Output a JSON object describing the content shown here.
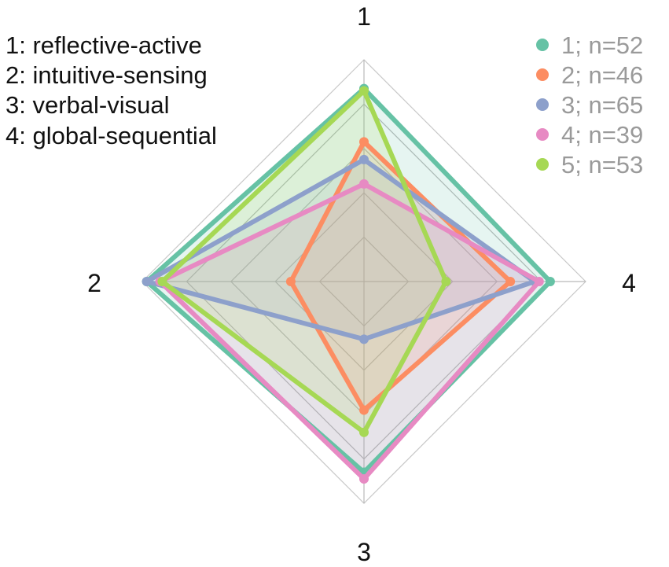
{
  "chart_data": {
    "type": "radar",
    "title": "",
    "axes": [
      "1",
      "2",
      "3",
      "4"
    ],
    "axis_descriptions": [
      "1: reflective-active",
      "2: intuitive-sensing",
      "3: verbal-visual",
      "4: global-sequential"
    ],
    "range": [
      0,
      1
    ],
    "grid_levels": [
      0.2,
      0.4,
      0.6,
      0.8,
      1.0
    ],
    "grid": true,
    "legend_position": "top-right",
    "series": [
      {
        "name": "1; n=52",
        "color": "#66c2a5",
        "values": [
          0.87,
          0.98,
          0.86,
          0.84
        ]
      },
      {
        "name": "2; n=46",
        "color": "#fc8d62",
        "values": [
          0.63,
          0.33,
          0.58,
          0.66
        ]
      },
      {
        "name": "3; n=65",
        "color": "#8da0cb",
        "values": [
          0.55,
          0.98,
          0.26,
          0.77
        ]
      },
      {
        "name": "4; n=39",
        "color": "#e78ac3",
        "values": [
          0.44,
          0.92,
          0.89,
          0.79
        ]
      },
      {
        "name": "5; n=53",
        "color": "#a6d854",
        "values": [
          0.86,
          0.91,
          0.68,
          0.37
        ]
      }
    ]
  }
}
